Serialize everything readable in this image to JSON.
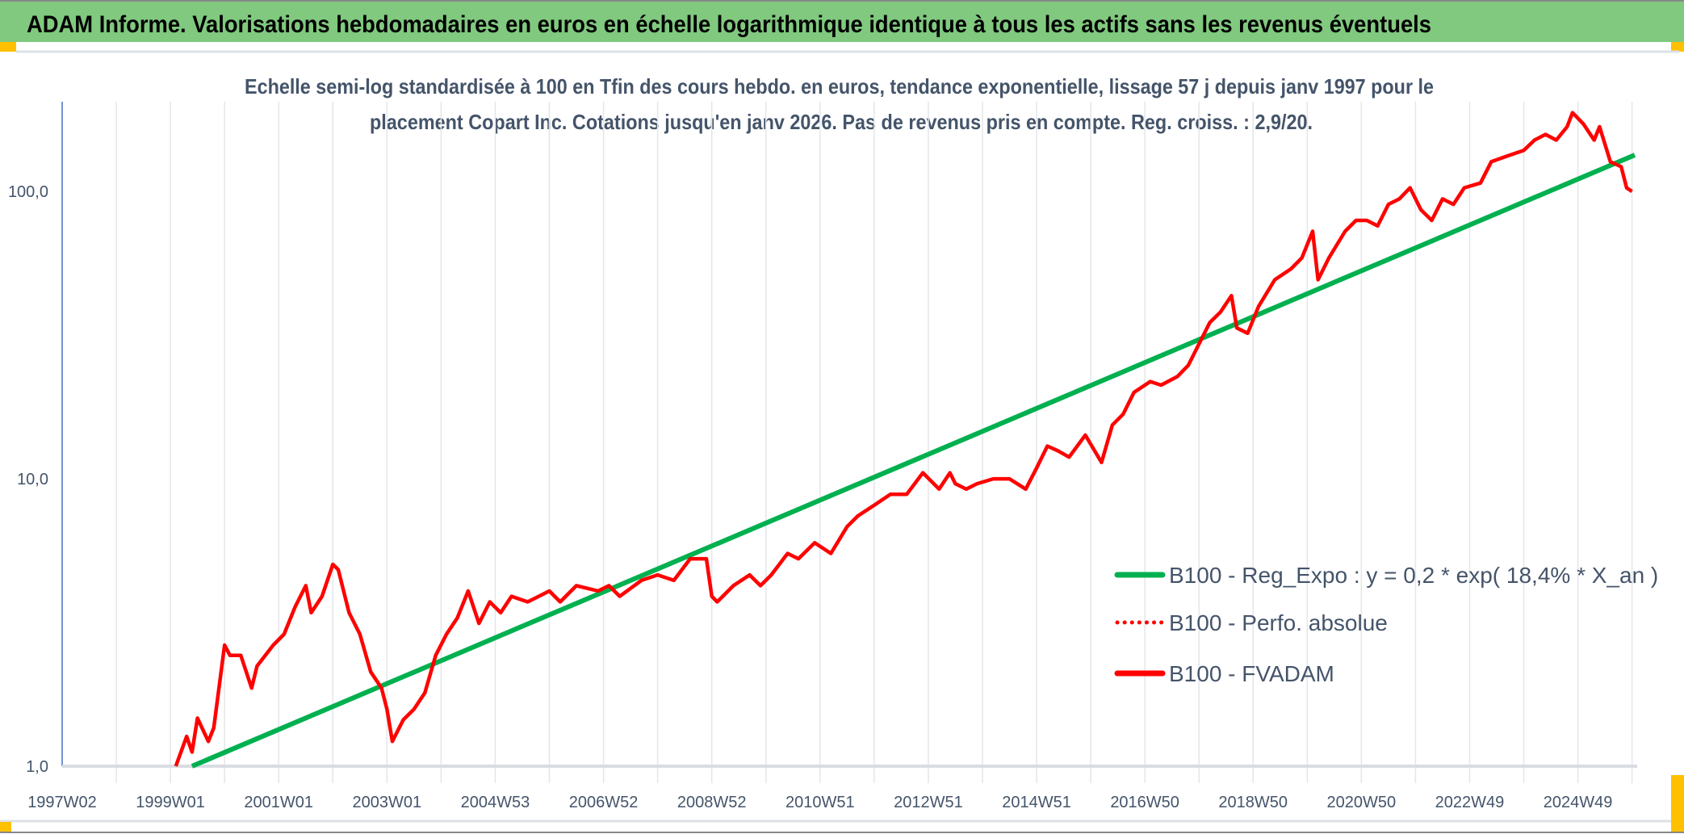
{
  "header": {
    "title": "ADAM Informe. Valorisations hebdomadaires en euros en échelle logarithmique identique à tous les actifs sans les revenus éventuels"
  },
  "colors": {
    "header_bg": "#80c97f",
    "green": "#00b050",
    "red": "#ff0000",
    "text": "#44546a",
    "corner": "#ffc000"
  },
  "chart_data": {
    "type": "line",
    "title_lines": [
      "Echelle semi-log standardisée à 100 en Tfin des cours hebdo. en euros, tendance exponentielle, lissage 57 j depuis janv 1997 pour le",
      "placement Copart Inc. Cotations jusqu'en janv 2026. Pas de revenus pris en compte. Reg. croiss. : 2,9/20."
    ],
    "y_scale": "log",
    "ylim": [
      1,
      200
    ],
    "y_ticks": [
      {
        "value": 1,
        "label": "1,0"
      },
      {
        "value": 10,
        "label": "10,0"
      },
      {
        "value": 100,
        "label": "100,0"
      }
    ],
    "xlim": [
      1997.0,
      2026.05
    ],
    "x_ticks": [
      {
        "year": 1997,
        "label": "1997W02"
      },
      {
        "year": 1999,
        "label": "1999W01"
      },
      {
        "year": 2001,
        "label": "2001W01"
      },
      {
        "year": 2003,
        "label": "2003W01"
      },
      {
        "year": 2005,
        "label": "2004W53"
      },
      {
        "year": 2007,
        "label": "2006W52"
      },
      {
        "year": 2009,
        "label": "2008W52"
      },
      {
        "year": 2011,
        "label": "2010W51"
      },
      {
        "year": 2013,
        "label": "2012W51"
      },
      {
        "year": 2015,
        "label": "2014W51"
      },
      {
        "year": 2017,
        "label": "2016W50"
      },
      {
        "year": 2019,
        "label": "2018W50"
      },
      {
        "year": 2021,
        "label": "2020W50"
      },
      {
        "year": 2023,
        "label": "2022W49"
      },
      {
        "year": 2025,
        "label": "2024W49"
      }
    ],
    "legend": [
      {
        "label": "B100 - Reg_Expo : y = 0,2 * exp( 18,4% *  X_an )",
        "style": "solid",
        "color": "#00b050"
      },
      {
        "label": "B100 - Perfo. absolue",
        "style": "dotted",
        "color": "#ff0000"
      },
      {
        "label": "B100 - FVADAM",
        "style": "solid",
        "color": "#ff0000"
      }
    ],
    "legend_position": "right",
    "series": [
      {
        "name": "B100 - Reg_Expo",
        "x": [
          1999.4,
          2026.05
        ],
        "y": [
          1.0,
          134
        ]
      },
      {
        "name": "B100 - FVADAM",
        "x": [
          1999.1,
          1999.3,
          1999.4,
          1999.5,
          1999.7,
          1999.8,
          2000.0,
          2000.1,
          2000.3,
          2000.5,
          2000.6,
          2000.9,
          2001.1,
          2001.3,
          2001.5,
          2001.6,
          2001.8,
          2002.0,
          2002.1,
          2002.3,
          2002.5,
          2002.7,
          2002.9,
          2003.0,
          2003.1,
          2003.3,
          2003.5,
          2003.7,
          2003.9,
          2004.1,
          2004.3,
          2004.5,
          2004.7,
          2004.9,
          2005.1,
          2005.3,
          2005.6,
          2006.0,
          2006.2,
          2006.5,
          2006.9,
          2007.1,
          2007.3,
          2007.7,
          2008.0,
          2008.3,
          2008.6,
          2008.9,
          2009.0,
          2009.1,
          2009.4,
          2009.7,
          2009.9,
          2010.1,
          2010.4,
          2010.6,
          2010.9,
          2011.2,
          2011.5,
          2011.7,
          2012.0,
          2012.3,
          2012.6,
          2012.9,
          2013.2,
          2013.4,
          2013.5,
          2013.7,
          2013.9,
          2014.2,
          2014.5,
          2014.8,
          2015.0,
          2015.2,
          2015.4,
          2015.6,
          2015.9,
          2016.2,
          2016.4,
          2016.6,
          2016.8,
          2017.1,
          2017.3,
          2017.6,
          2017.8,
          2018.1,
          2018.2,
          2018.4,
          2018.6,
          2018.7,
          2018.9,
          2019.1,
          2019.4,
          2019.7,
          2019.9,
          2020.1,
          2020.2,
          2020.4,
          2020.7,
          2020.9,
          2021.1,
          2021.3,
          2021.5,
          2021.7,
          2021.9,
          2022.1,
          2022.3,
          2022.5,
          2022.7,
          2022.9,
          2023.2,
          2023.4,
          2023.7,
          2024.0,
          2024.2,
          2024.4,
          2024.6,
          2024.8,
          2024.9,
          2025.1,
          2025.3,
          2025.4,
          2025.6,
          2025.8,
          2025.9,
          2026.0
        ],
        "y": [
          1.0,
          1.27,
          1.12,
          1.47,
          1.22,
          1.36,
          2.64,
          2.43,
          2.43,
          1.87,
          2.23,
          2.64,
          2.88,
          3.57,
          4.25,
          3.42,
          3.9,
          5.04,
          4.83,
          3.42,
          2.88,
          2.13,
          1.87,
          1.58,
          1.22,
          1.45,
          1.58,
          1.8,
          2.43,
          2.88,
          3.28,
          4.07,
          3.14,
          3.73,
          3.42,
          3.9,
          3.73,
          4.07,
          3.73,
          4.25,
          4.07,
          4.25,
          3.9,
          4.43,
          4.63,
          4.43,
          5.27,
          5.27,
          3.9,
          3.73,
          4.25,
          4.63,
          4.25,
          4.63,
          5.5,
          5.27,
          5.99,
          5.5,
          6.82,
          7.43,
          8.1,
          8.83,
          8.83,
          10.5,
          9.21,
          10.5,
          9.62,
          9.21,
          9.62,
          10.0,
          10.0,
          9.21,
          10.9,
          13.0,
          12.5,
          11.9,
          14.2,
          11.4,
          15.4,
          16.8,
          20.0,
          21.8,
          21.2,
          22.7,
          24.8,
          32.1,
          35.0,
          38.1,
          43.4,
          33.5,
          32.1,
          39.8,
          49.3,
          53.8,
          58.7,
          72.7,
          49.3,
          58.7,
          72.7,
          79.3,
          79.3,
          75.9,
          90.2,
          94.2,
          103,
          86.4,
          79.3,
          94.2,
          90.2,
          103,
          107,
          127,
          133,
          139,
          151,
          158,
          151,
          168,
          188,
          172,
          151,
          168,
          127,
          122,
          103,
          100
        ]
      }
    ]
  }
}
